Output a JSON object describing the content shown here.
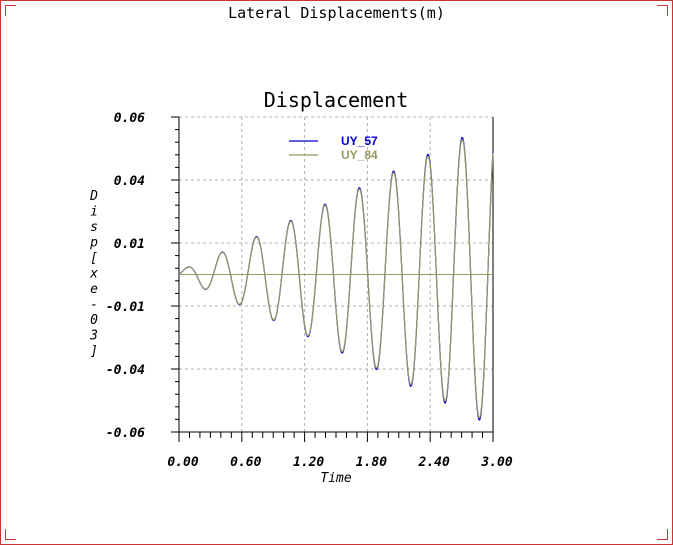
{
  "window": {
    "title": "Lateral Displacements(m)"
  },
  "colors": {
    "frame": "#cc3333",
    "grid": "#b0b0b0",
    "series_uy57": "#0000cc",
    "series_uy84": "#999966"
  },
  "chart_data": {
    "type": "line",
    "title": "Displacement",
    "xlabel": "Time",
    "ylabel": "Disp[xe-03]",
    "xlim": [
      0,
      3.0
    ],
    "ylim": [
      -0.06,
      0.06
    ],
    "x_ticks": [
      "0.00",
      "0.60",
      "1.20",
      "1.80",
      "2.40",
      "3.00"
    ],
    "y_ticks": [
      "0.06",
      "0.04",
      "0.01",
      "-0.01",
      "-0.04",
      "-0.06"
    ],
    "grid": true,
    "legend_position": "top-center",
    "signal": {
      "frequency_per_time": 3.05,
      "amplitude_start": 0.0015,
      "amplitude_end": 0.058,
      "y_offset": 0.0
    },
    "series": [
      {
        "name": "UY_57",
        "color": "#0000cc"
      },
      {
        "name": "UY_84",
        "color": "#999966"
      }
    ]
  }
}
